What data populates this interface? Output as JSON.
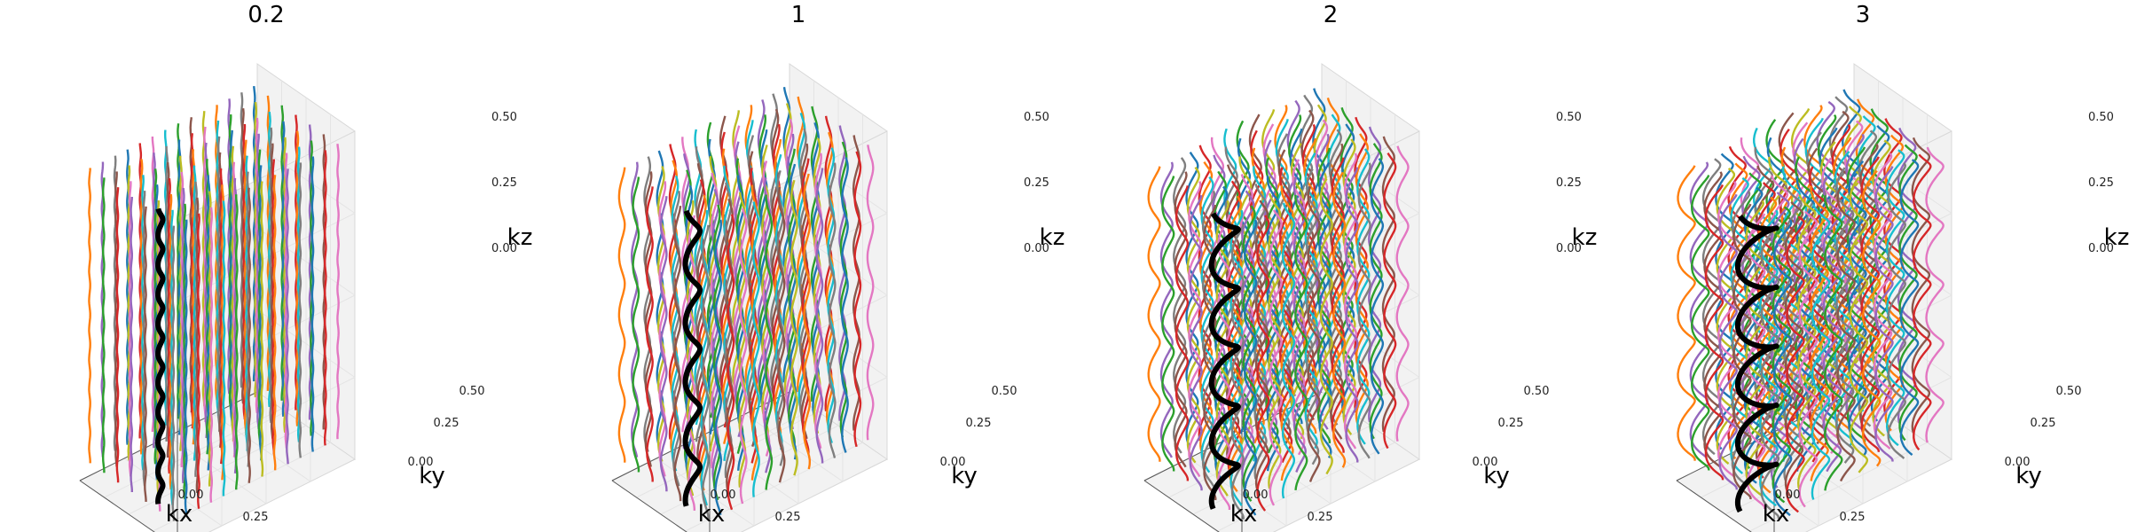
{
  "figure": {
    "palette": [
      "#1f77b4",
      "#ff7f0e",
      "#2ca02c",
      "#d62728",
      "#9467bd",
      "#8c564b",
      "#e377c2",
      "#7f7f7f",
      "#bcbd22",
      "#17becf"
    ],
    "highlight_color": "#000000",
    "pane_color": "#f2f2f2",
    "grid": true
  },
  "chart_data": [
    {
      "type": "line3d",
      "title": "0.2",
      "xlabel": "kx",
      "ylabel": "ky",
      "zlabel": "kz",
      "xlim": [
        -0.5,
        0.5
      ],
      "ylim": [
        -0.5,
        0.5
      ],
      "zlim": [
        -0.5,
        0.5
      ],
      "xticks": [
        "0.00",
        "0.25"
      ],
      "yticks": [
        "0.00",
        "0.25",
        "0.50"
      ],
      "zticks": [
        "0.00",
        "0.25",
        "0.50"
      ],
      "grid_size": 14,
      "turns": 10,
      "radius": 0.2,
      "highlight": {
        "kx": 0.5,
        "ky": 0.18
      }
    },
    {
      "type": "line3d",
      "title": "1",
      "xlabel": "kx",
      "ylabel": "ky",
      "zlabel": "kz",
      "xlim": [
        -0.5,
        0.5
      ],
      "ylim": [
        -0.5,
        0.5
      ],
      "zlim": [
        -0.5,
        0.5
      ],
      "xticks": [
        "0.00",
        "0.25"
      ],
      "yticks": [
        "0.00",
        "0.25",
        "0.50"
      ],
      "zticks": [
        "0.00",
        "0.25",
        "0.50"
      ],
      "grid_size": 14,
      "turns": 5,
      "radius": 1,
      "highlight": {
        "kx": 0.5,
        "ky": 0.18
      }
    },
    {
      "type": "line3d",
      "title": "2",
      "xlabel": "kx",
      "ylabel": "ky",
      "zlabel": "kz",
      "xlim": [
        -0.5,
        0.5
      ],
      "ylim": [
        -0.5,
        0.5
      ],
      "zlim": [
        -0.5,
        0.5
      ],
      "xticks": [
        "0.00",
        "0.25"
      ],
      "yticks": [
        "0.00",
        "0.25",
        "0.50"
      ],
      "zticks": [
        "0.00",
        "0.25",
        "0.50"
      ],
      "grid_size": 14,
      "turns": 5,
      "radius": 2,
      "highlight": {
        "kx": 0.5,
        "ky": 0.18
      }
    },
    {
      "type": "line3d",
      "title": "3",
      "xlabel": "kx",
      "ylabel": "ky",
      "zlabel": "kz",
      "xlim": [
        -0.5,
        0.5
      ],
      "ylim": [
        -0.5,
        0.5
      ],
      "zlim": [
        -0.5,
        0.5
      ],
      "xticks": [
        "0.00",
        "0.25"
      ],
      "yticks": [
        "0.00",
        "0.25",
        "0.50"
      ],
      "zticks": [
        "0.00",
        "0.25",
        "0.50"
      ],
      "grid_size": 14,
      "turns": 5,
      "radius": 3,
      "highlight": {
        "kx": 0.5,
        "ky": 0.18
      }
    }
  ]
}
